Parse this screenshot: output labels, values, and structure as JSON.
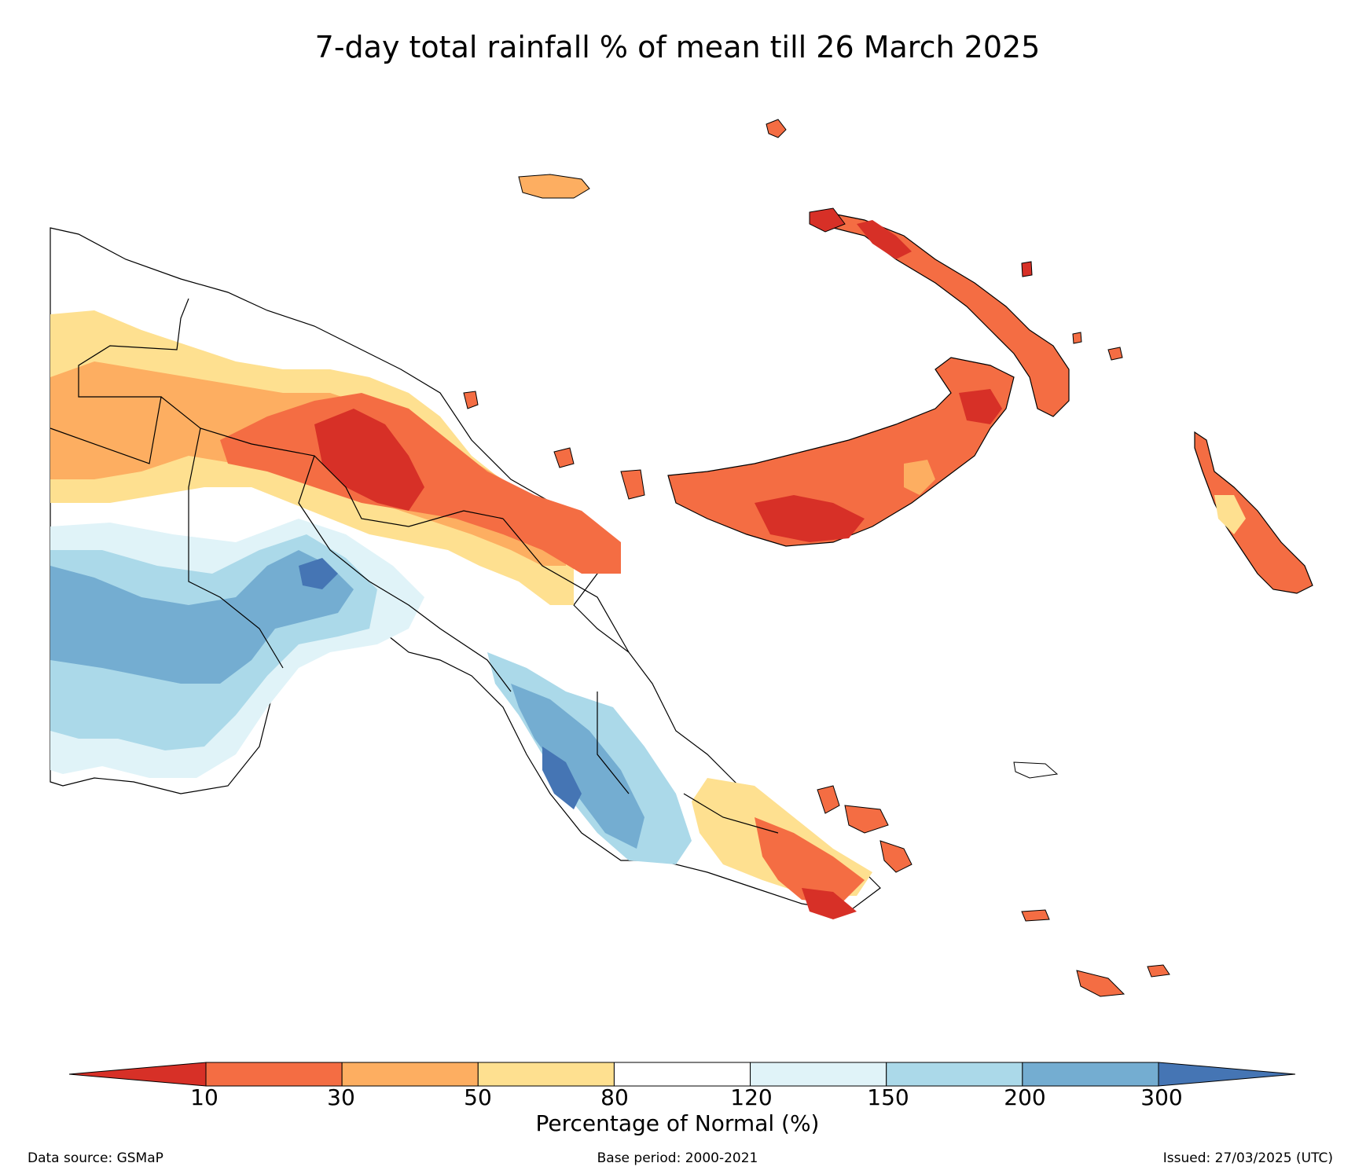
{
  "title": "7-day total rainfall % of mean till 26 March 2025",
  "legend": {
    "title": "Percentage of Normal (%)",
    "ticks": [
      "10",
      "30",
      "50",
      "80",
      "120",
      "150",
      "200",
      "300"
    ],
    "colors": [
      "#d73027",
      "#f46d43",
      "#fdae61",
      "#fee090",
      "#ffffff",
      "#e0f3f8",
      "#abd9e9",
      "#74add1",
      "#4575b4"
    ]
  },
  "footer": {
    "source": "Data source: GSMaP",
    "base_period": "Base period: 2000-2021",
    "issued": "Issued: 27/03/2025 (UTC)"
  }
}
